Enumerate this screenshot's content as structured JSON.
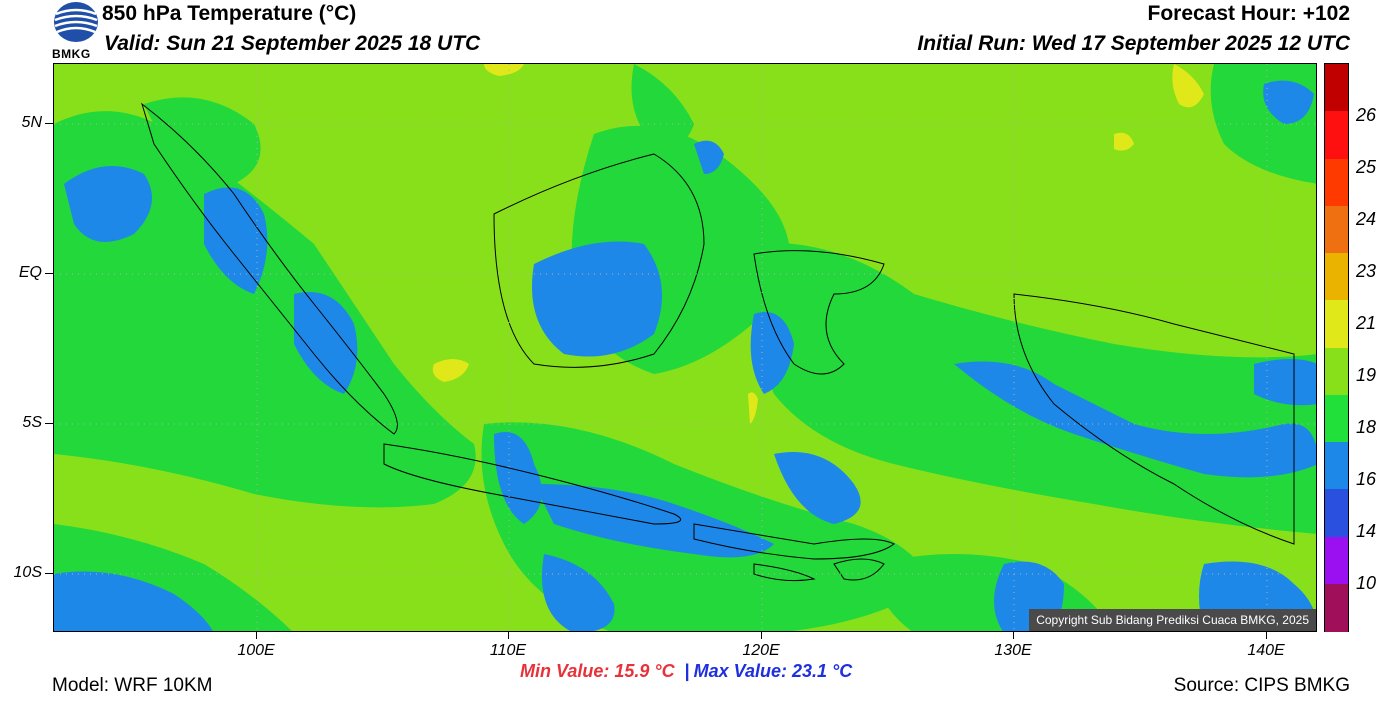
{
  "header": {
    "title": "850 hPa Temperature (°C)",
    "valid": "Valid: Sun 21 September 2025 18 UTC",
    "forecast_hour": "Forecast Hour: +102",
    "initial_run": "Initial Run: Wed 17 September 2025 12 UTC"
  },
  "logo": {
    "text": "BMKG",
    "colors": {
      "blue": "#1f4fa8",
      "white": "#ffffff"
    }
  },
  "map": {
    "lat_labels": [
      "5N",
      "EQ",
      "5S",
      "10S"
    ],
    "lon_labels": [
      "100E",
      "110E",
      "120E",
      "130E",
      "140E"
    ],
    "copyright": "Copyright Sub Bidang Prediksi Cuaca BMKG, 2025"
  },
  "stats": {
    "min": "Min Value: 15.9 °C",
    "separator": "|",
    "max": "Max Value: 23.1 °C"
  },
  "footer": {
    "model": "Model: WRF 10KM",
    "source": "Source: CIPS BMKG"
  },
  "colorbar": {
    "labels": [
      "26",
      "25",
      "24",
      "23",
      "21",
      "19",
      "18",
      "16",
      "14",
      "10"
    ],
    "colors": [
      "#c00000",
      "#ff1010",
      "#ff3a00",
      "#ee7010",
      "#eab300",
      "#e0e81a",
      "#88e01a",
      "#22e03a",
      "#1e88e8",
      "#2a50e0",
      "#9a10f0",
      "#a0105a"
    ]
  }
}
